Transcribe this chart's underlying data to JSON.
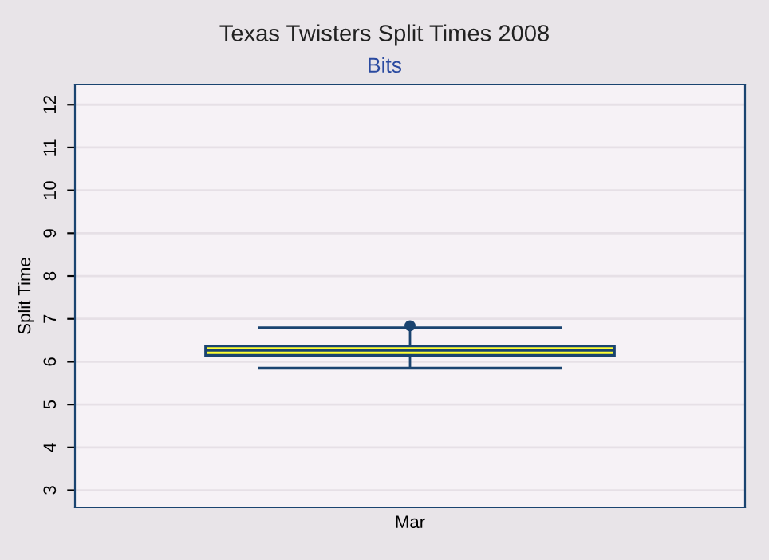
{
  "chart_data": {
    "type": "box",
    "title": "Texas Twisters Split Times 2008",
    "subtitle": "Bits",
    "ylabel": "Split Time",
    "categories": [
      "Mar"
    ],
    "boxes": [
      {
        "low": 5.85,
        "q1": 6.15,
        "median": 6.26,
        "q3": 6.37,
        "high": 6.79,
        "outliers": [
          6.84
        ]
      }
    ],
    "color": "#ffff33",
    "ylim": [
      2.6,
      12.47
    ],
    "yticks": [
      3,
      4,
      5,
      6,
      7,
      8,
      9,
      10,
      11,
      12
    ],
    "grid": "y"
  }
}
